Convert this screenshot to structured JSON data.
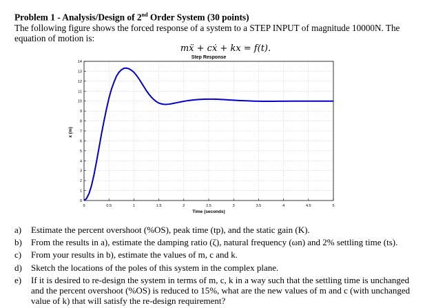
{
  "problem": {
    "title": "Problem 1 - Analysis/Design of 2",
    "title_sup": "nd",
    "title_rest": " Order System (30 points)",
    "intro": "The following figure shows the forced response of a system to a STEP INPUT of magnitude 10000N. The equation of motion is:",
    "equation": "mẍ + cẋ + kx = f(t)."
  },
  "chart_data": {
    "type": "line",
    "title": "Step Response",
    "xlabel": "Time (seconds)",
    "ylabel": "x (m)",
    "xlim": [
      0,
      5
    ],
    "ylim": [
      0,
      14
    ],
    "xticks": [
      "0",
      "0.5",
      "1",
      "1.5",
      "2",
      "2.5",
      "3",
      "3.5",
      "4",
      "4.5",
      "5"
    ],
    "yticks": [
      "0",
      "1",
      "2",
      "3",
      "4",
      "5",
      "6",
      "7",
      "8",
      "9",
      "10",
      "11",
      "12",
      "13",
      "14"
    ],
    "grid": true,
    "line_color": "#0000cc",
    "series": [
      {
        "x": [
          0,
          0.05,
          0.1,
          0.15,
          0.2,
          0.25,
          0.3,
          0.35,
          0.4,
          0.45,
          0.5,
          0.55,
          0.6,
          0.65,
          0.7,
          0.75,
          0.8,
          0.85,
          0.9,
          0.95,
          1.0,
          1.05,
          1.1,
          1.15,
          1.2,
          1.25,
          1.3,
          1.35,
          1.4,
          1.45,
          1.5,
          1.55,
          1.6,
          1.65,
          1.7,
          1.75,
          1.8,
          1.85,
          1.9,
          1.95,
          2.0,
          2.05,
          2.1,
          2.2,
          2.3,
          2.4,
          2.5,
          2.6,
          2.7,
          2.8,
          2.9,
          3.0,
          3.1,
          3.2,
          3.3,
          3.4,
          3.5,
          3.6,
          3.7,
          3.8,
          3.9,
          4.0,
          4.2,
          4.4,
          4.6,
          4.8,
          5.0
        ],
        "y": [
          0,
          0.2,
          0.7,
          1.5,
          2.6,
          3.9,
          5.3,
          6.7,
          8.0,
          9.2,
          10.3,
          11.2,
          11.9,
          12.5,
          12.9,
          13.15,
          13.3,
          13.32,
          13.25,
          13.1,
          12.9,
          12.6,
          12.25,
          11.85,
          11.45,
          11.05,
          10.7,
          10.4,
          10.15,
          9.95,
          9.8,
          9.72,
          9.68,
          9.67,
          9.69,
          9.73,
          9.78,
          9.83,
          9.88,
          9.93,
          9.98,
          10.02,
          10.06,
          10.12,
          10.16,
          10.19,
          10.2,
          10.2,
          10.18,
          10.15,
          10.12,
          10.09,
          10.06,
          10.04,
          10.02,
          10.0,
          9.99,
          9.98,
          9.98,
          9.98,
          9.99,
          9.99,
          10.0,
          10.0,
          10.0,
          10.0,
          10.0
        ]
      }
    ]
  },
  "questions": [
    {
      "label": "a)",
      "text": "Estimate the percent overshoot (%OS), peak time (tp), and the static gain (K)."
    },
    {
      "label": "b)",
      "text": "From the results in a), estimate the damping ratio (ζ), natural frequency (ωn) and 2% settling time (ts)."
    },
    {
      "label": "c)",
      "text": "From your results in b), estimate the values of m, c and k."
    },
    {
      "label": "d)",
      "text": "Sketch the locations of the poles of this system in the complex plane."
    },
    {
      "label": "e)",
      "text": "If it is desired to re-design the system in terms of m, c, k in a way such that the settling time is unchanged and the percent overshoot (%OS) is reduced to 15%, what are the new values of m and c (with unchanged value of k) that will satisfy the re-design requirement?"
    }
  ]
}
